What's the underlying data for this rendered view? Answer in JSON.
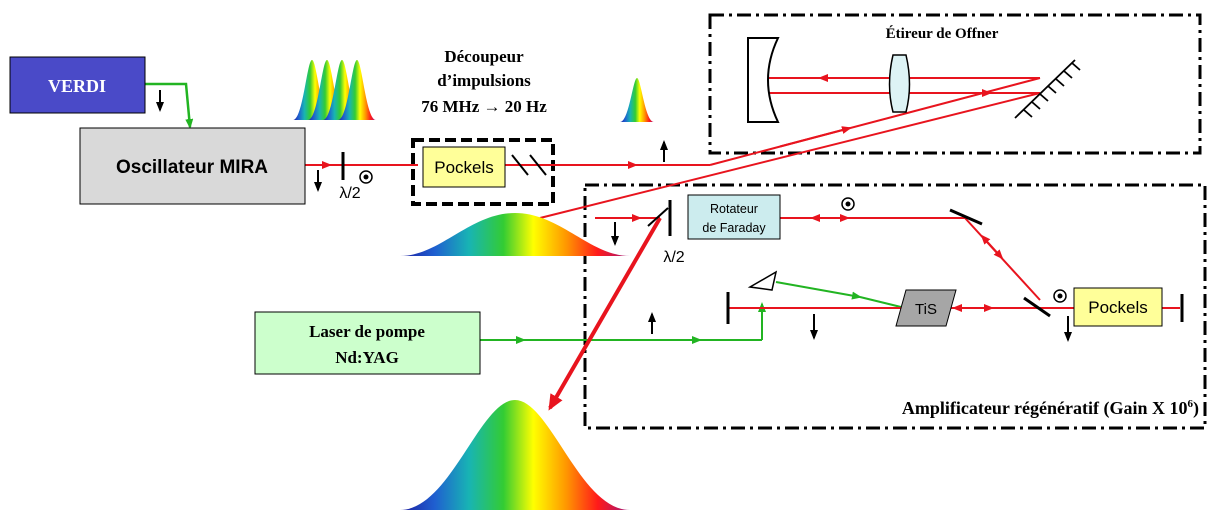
{
  "components": {
    "verdi": "VERDI",
    "oscillator": "Oscillateur MIRA",
    "pulse_picker_title_1": "Découpeur",
    "pulse_picker_title_2": "d’impulsions",
    "pulse_picker_rate": "76 MHz → 20 Hz",
    "pockels_picker": "Pockels",
    "stretcher_title": "Étireur de Offner",
    "faraday_line1": "Rotateur",
    "faraday_line2": "de Faraday",
    "pump_line1": "Laser de pompe",
    "pump_line2": "Nd:YAG",
    "tis": "TiS",
    "pockels_amp": "Pockels",
    "amp_title": "Amplificateur régénératif (Gain X 10",
    "amp_exp": "6",
    "amp_close": ")",
    "half_wave_1": "λ/2",
    "half_wave_2": "λ/2"
  },
  "colors": {
    "beam_red": "#e8141e",
    "beam_green": "#22b422",
    "verdi_fill": "#4a4ac8",
    "oscillator_fill": "#d9d9d9",
    "pockels_fill": "#ffff99",
    "pump_fill": "#ccffcc",
    "faraday_fill": "#ccecee",
    "tis_fill": "#a6a6a6"
  }
}
